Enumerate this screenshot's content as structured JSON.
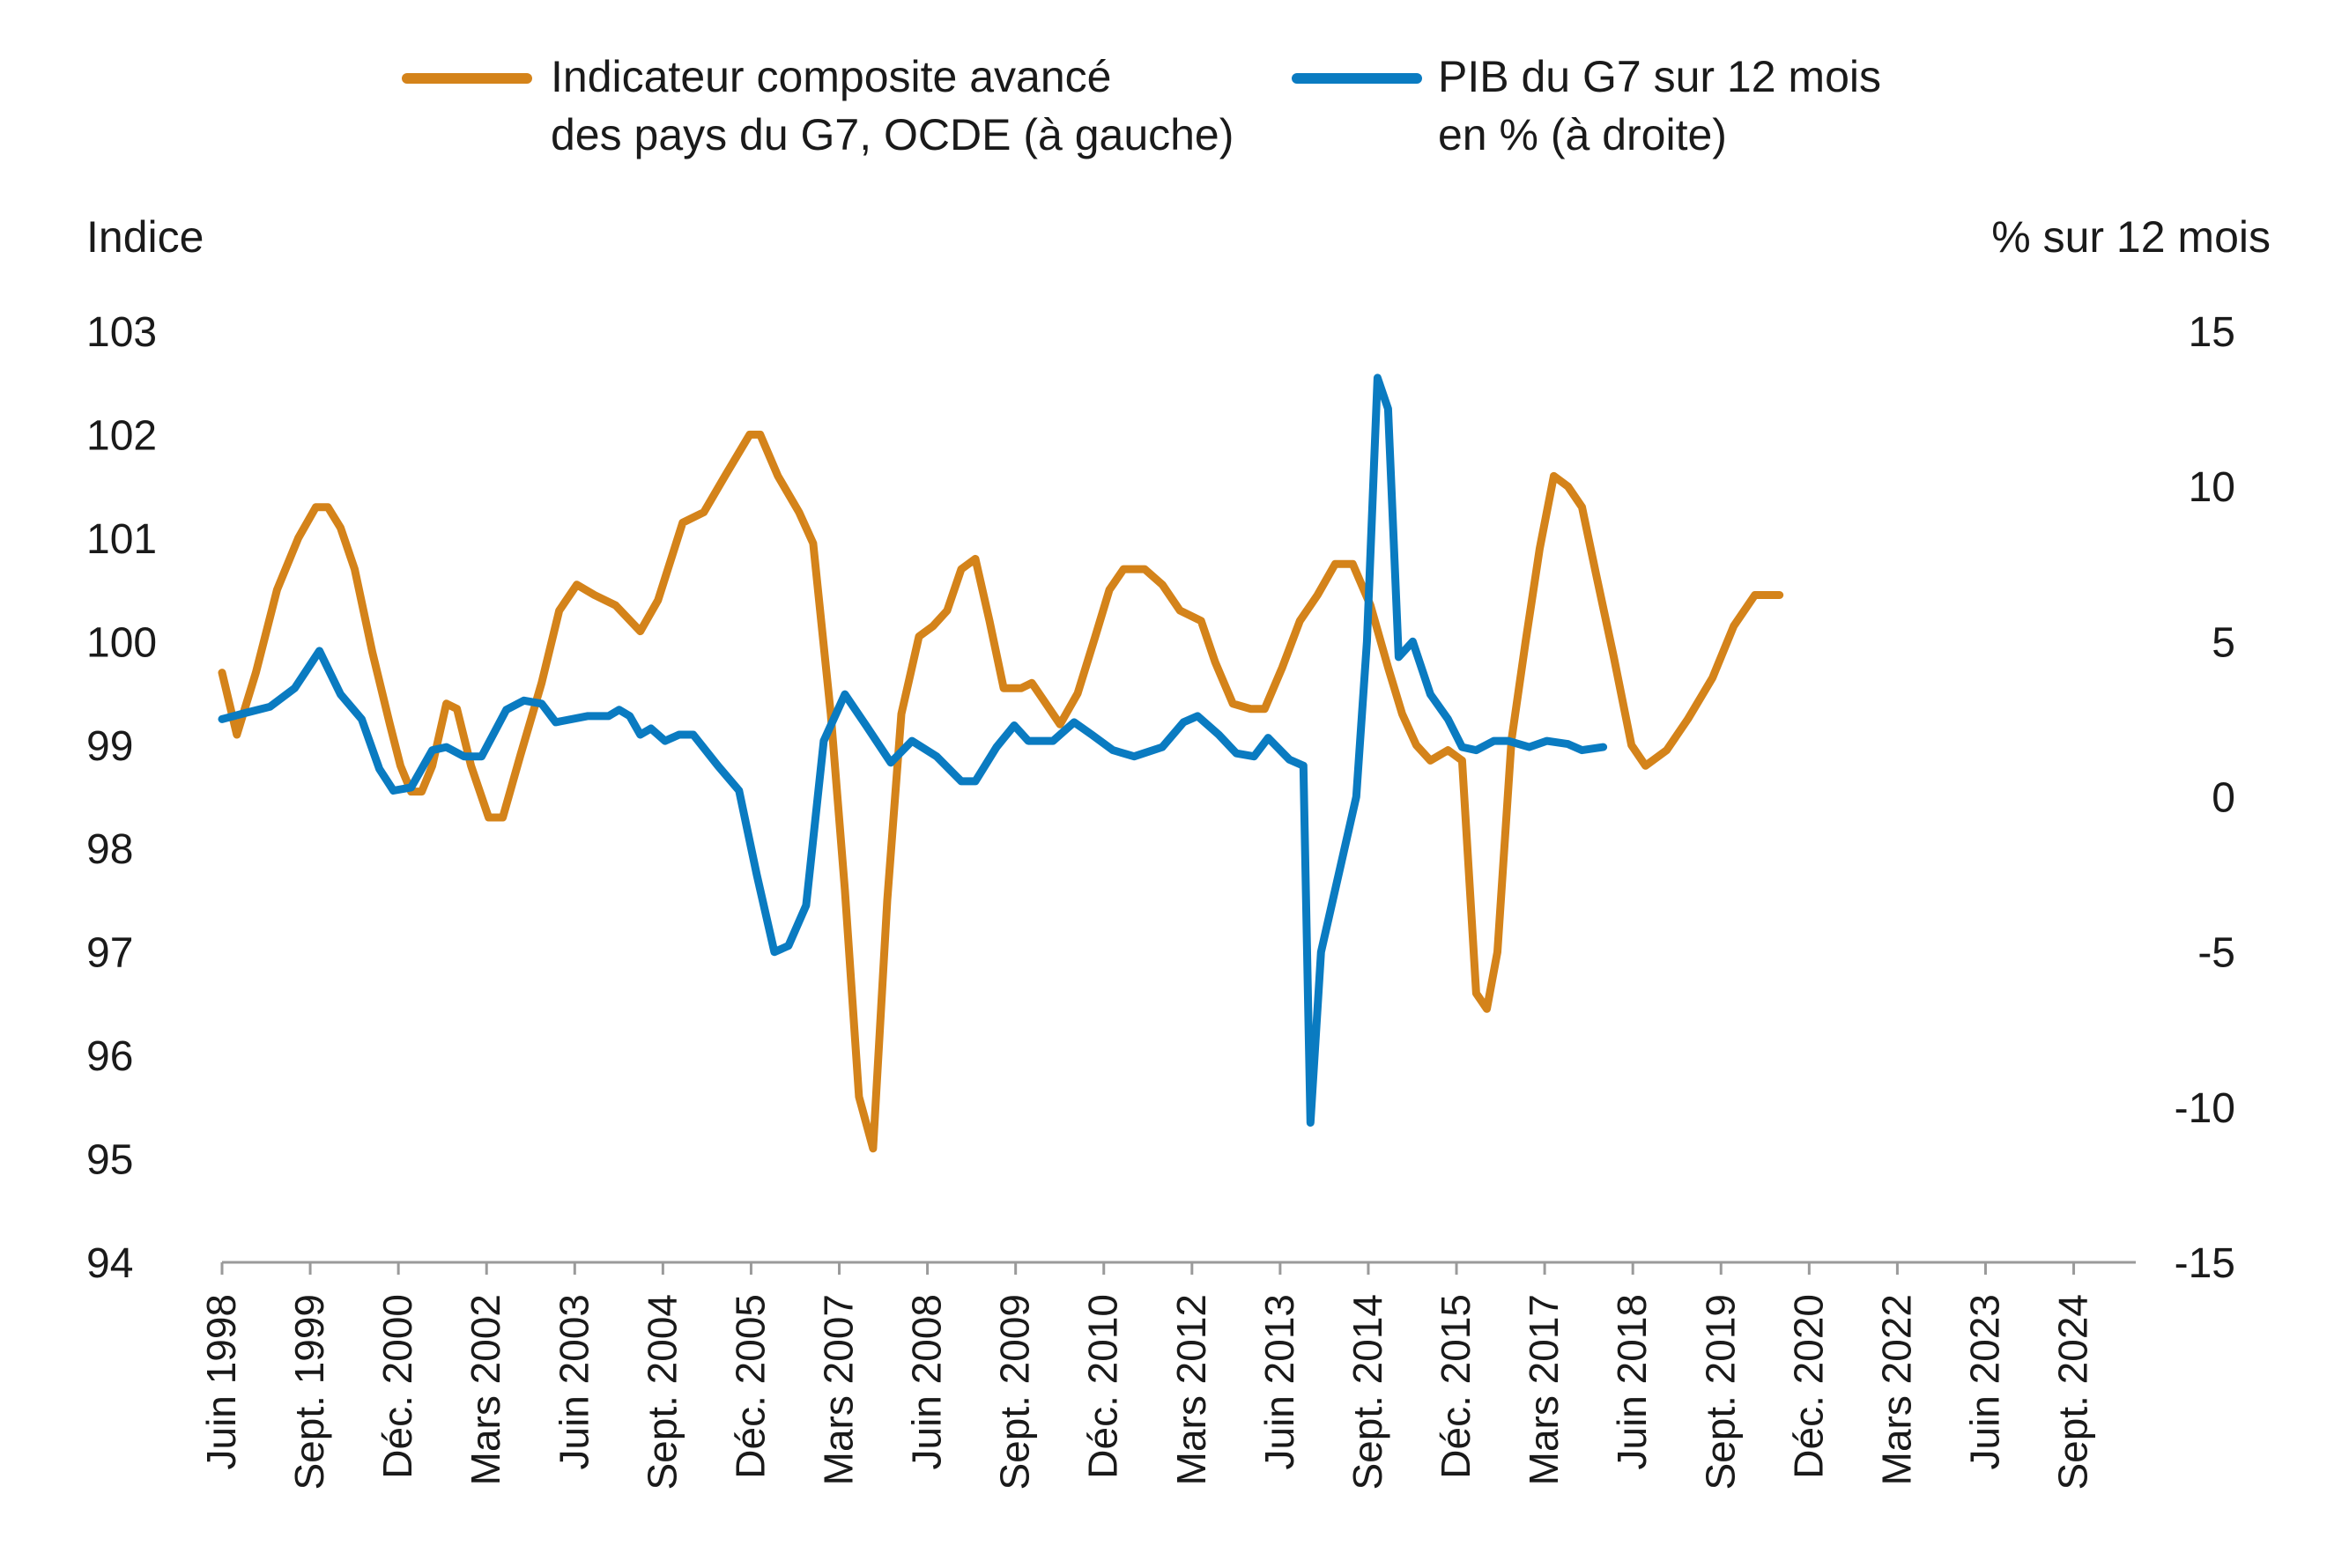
{
  "colors": {
    "composite": "#D4831A",
    "gdp": "#0A7BC1",
    "axis": "#9a9a9a",
    "text": "#1a1a1a"
  },
  "legend": {
    "composite": [
      "Indicateur composite avancé",
      "des pays du G7, OCDE (à gauche)"
    ],
    "gdp": [
      "PIB du G7 sur 12 mois",
      "en % (à droite)"
    ]
  },
  "chart_data": {
    "type": "line",
    "title": "",
    "left_axis": {
      "title": "Indice",
      "range": [
        94,
        103
      ],
      "ticks": [
        94,
        95,
        96,
        97,
        98,
        99,
        100,
        101,
        102,
        103
      ]
    },
    "right_axis": {
      "title": "% sur 12 mois",
      "range": [
        -15,
        15
      ],
      "ticks": [
        -15,
        -10,
        -5,
        0,
        5,
        10,
        15
      ]
    },
    "x_range": [
      1998.42,
      2025.55
    ],
    "x_labels": [
      {
        "label": "Juin 1998",
        "t": 1998.42
      },
      {
        "label": "Sept. 1999",
        "t": 1999.67
      },
      {
        "label": "Déc. 2000",
        "t": 2000.92
      },
      {
        "label": "Mars 2002",
        "t": 2002.17
      },
      {
        "label": "Juin 2003",
        "t": 2003.42
      },
      {
        "label": "Sept. 2004",
        "t": 2004.67
      },
      {
        "label": "Déc. 2005",
        "t": 2005.92
      },
      {
        "label": "Mars 2007",
        "t": 2007.17
      },
      {
        "label": "Juin 2008",
        "t": 2008.42
      },
      {
        "label": "Sept. 2009",
        "t": 2009.67
      },
      {
        "label": "Déc. 2010",
        "t": 2010.92
      },
      {
        "label": "Mars 2012",
        "t": 2012.17
      },
      {
        "label": "Juin 2013",
        "t": 2013.42
      },
      {
        "label": "Sept. 2014",
        "t": 2014.67
      },
      {
        "label": "Déc. 2015",
        "t": 2015.92
      },
      {
        "label": "Mars 2017",
        "t": 2017.17
      },
      {
        "label": "Juin 2018",
        "t": 2018.42
      },
      {
        "label": "Sept. 2019",
        "t": 2019.67
      },
      {
        "label": "Déc. 2020",
        "t": 2020.92
      },
      {
        "label": "Mars 2022",
        "t": 2022.17
      },
      {
        "label": "Juin 2023",
        "t": 2023.42
      },
      {
        "label": "Sept. 2024",
        "t": 2024.67
      }
    ],
    "series": [
      {
        "name": "Indicateur composite avancé des pays du G7, OCDE (à gauche)",
        "axis": "left",
        "color_key": "composite",
        "points": [
          [
            1998.42,
            99.7
          ],
          [
            1998.63,
            99.1
          ],
          [
            1998.9,
            99.7
          ],
          [
            1999.2,
            100.5
          ],
          [
            1999.5,
            101.0
          ],
          [
            1999.75,
            101.3
          ],
          [
            1999.92,
            101.3
          ],
          [
            2000.1,
            101.1
          ],
          [
            2000.3,
            100.7
          ],
          [
            2000.55,
            99.9
          ],
          [
            2000.8,
            99.2
          ],
          [
            2000.95,
            98.8
          ],
          [
            2001.1,
            98.55
          ],
          [
            2001.25,
            98.55
          ],
          [
            2001.4,
            98.8
          ],
          [
            2001.6,
            99.4
          ],
          [
            2001.75,
            99.35
          ],
          [
            2001.95,
            98.8
          ],
          [
            2002.2,
            98.3
          ],
          [
            2002.4,
            98.3
          ],
          [
            2002.65,
            98.9
          ],
          [
            2002.95,
            99.6
          ],
          [
            2003.2,
            100.3
          ],
          [
            2003.45,
            100.55
          ],
          [
            2003.7,
            100.45
          ],
          [
            2004.0,
            100.35
          ],
          [
            2004.35,
            100.1
          ],
          [
            2004.6,
            100.4
          ],
          [
            2004.95,
            101.15
          ],
          [
            2005.25,
            101.25
          ],
          [
            2005.55,
            101.6
          ],
          [
            2005.9,
            102.0
          ],
          [
            2006.05,
            102.0
          ],
          [
            2006.3,
            101.6
          ],
          [
            2006.6,
            101.25
          ],
          [
            2006.8,
            100.95
          ],
          [
            2007.05,
            99.3
          ],
          [
            2007.25,
            97.6
          ],
          [
            2007.45,
            95.6
          ],
          [
            2007.65,
            95.1
          ],
          [
            2007.85,
            97.5
          ],
          [
            2008.05,
            99.3
          ],
          [
            2008.3,
            100.05
          ],
          [
            2008.5,
            100.15
          ],
          [
            2008.7,
            100.3
          ],
          [
            2008.9,
            100.7
          ],
          [
            2009.1,
            100.8
          ],
          [
            2009.3,
            100.2
          ],
          [
            2009.5,
            99.55
          ],
          [
            2009.75,
            99.55
          ],
          [
            2009.9,
            99.6
          ],
          [
            2010.05,
            99.45
          ],
          [
            2010.3,
            99.2
          ],
          [
            2010.55,
            99.5
          ],
          [
            2010.8,
            100.05
          ],
          [
            2011.0,
            100.5
          ],
          [
            2011.2,
            100.7
          ],
          [
            2011.5,
            100.7
          ],
          [
            2011.75,
            100.55
          ],
          [
            2012.0,
            100.3
          ],
          [
            2012.3,
            100.2
          ],
          [
            2012.5,
            99.8
          ],
          [
            2012.75,
            99.4
          ],
          [
            2013.0,
            99.35
          ],
          [
            2013.2,
            99.35
          ],
          [
            2013.45,
            99.75
          ],
          [
            2013.7,
            100.2
          ],
          [
            2013.95,
            100.45
          ],
          [
            2014.2,
            100.75
          ],
          [
            2014.45,
            100.75
          ],
          [
            2014.7,
            100.35
          ],
          [
            2014.95,
            99.75
          ],
          [
            2015.15,
            99.3
          ],
          [
            2015.35,
            99.0
          ],
          [
            2015.55,
            98.85
          ],
          [
            2015.8,
            98.95
          ],
          [
            2016.0,
            98.85
          ],
          [
            2016.2,
            96.6
          ],
          [
            2016.35,
            96.45
          ],
          [
            2016.5,
            97.0
          ],
          [
            2016.7,
            99.05
          ],
          [
            2016.9,
            100.0
          ],
          [
            2017.1,
            100.9
          ],
          [
            2017.3,
            101.6
          ],
          [
            2017.5,
            101.5
          ],
          [
            2017.7,
            101.3
          ],
          [
            2017.9,
            100.65
          ],
          [
            2018.15,
            99.85
          ],
          [
            2018.4,
            99.0
          ],
          [
            2018.6,
            98.8
          ],
          [
            2018.9,
            98.95
          ],
          [
            2019.2,
            99.25
          ],
          [
            2019.55,
            99.65
          ],
          [
            2019.85,
            100.15
          ],
          [
            2020.15,
            100.45
          ],
          [
            2020.5,
            100.45
          ]
        ]
      },
      {
        "name": "PIB du G7 sur 12 mois en % (à droite)",
        "axis": "right",
        "color_key": "gdp",
        "points": [
          [
            1998.42,
            2.5
          ],
          [
            1998.75,
            2.7
          ],
          [
            1999.1,
            2.9
          ],
          [
            1999.45,
            3.5
          ],
          [
            1999.8,
            4.7
          ],
          [
            2000.1,
            3.3
          ],
          [
            2000.4,
            2.5
          ],
          [
            2000.65,
            0.9
          ],
          [
            2000.85,
            0.2
          ],
          [
            2001.1,
            0.3
          ],
          [
            2001.4,
            1.5
          ],
          [
            2001.6,
            1.6
          ],
          [
            2001.85,
            1.3
          ],
          [
            2002.1,
            1.3
          ],
          [
            2002.45,
            2.8
          ],
          [
            2002.7,
            3.1
          ],
          [
            2002.95,
            3.0
          ],
          [
            2003.15,
            2.4
          ],
          [
            2003.6,
            2.6
          ],
          [
            2003.9,
            2.6
          ],
          [
            2004.05,
            2.8
          ],
          [
            2004.2,
            2.6
          ],
          [
            2004.35,
            2.0
          ],
          [
            2004.5,
            2.2
          ],
          [
            2004.7,
            1.8
          ],
          [
            2004.9,
            2.0
          ],
          [
            2005.1,
            2.0
          ],
          [
            2005.45,
            1.0
          ],
          [
            2005.75,
            0.2
          ],
          [
            2006.0,
            -2.5
          ],
          [
            2006.25,
            -5.0
          ],
          [
            2006.45,
            -4.8
          ],
          [
            2006.7,
            -3.5
          ],
          [
            2006.95,
            1.8
          ],
          [
            2007.25,
            3.3
          ],
          [
            2007.55,
            2.3
          ],
          [
            2007.9,
            1.1
          ],
          [
            2008.2,
            1.8
          ],
          [
            2008.55,
            1.3
          ],
          [
            2008.9,
            0.5
          ],
          [
            2009.1,
            0.5
          ],
          [
            2009.4,
            1.6
          ],
          [
            2009.65,
            2.3
          ],
          [
            2009.85,
            1.8
          ],
          [
            2010.2,
            1.8
          ],
          [
            2010.5,
            2.4
          ],
          [
            2010.75,
            2.0
          ],
          [
            2011.05,
            1.5
          ],
          [
            2011.35,
            1.3
          ],
          [
            2011.75,
            1.6
          ],
          [
            2012.05,
            2.4
          ],
          [
            2012.25,
            2.6
          ],
          [
            2012.55,
            2.0
          ],
          [
            2012.8,
            1.4
          ],
          [
            2013.05,
            1.3
          ],
          [
            2013.25,
            1.9
          ],
          [
            2013.55,
            1.2
          ],
          [
            2013.75,
            1.0
          ],
          [
            2013.85,
            -10.5
          ],
          [
            2014.0,
            -5.0
          ],
          [
            2014.25,
            -2.5
          ],
          [
            2014.5,
            0.0
          ],
          [
            2014.65,
            5.0
          ],
          [
            2014.8,
            13.5
          ],
          [
            2014.95,
            12.5
          ],
          [
            2015.1,
            4.5
          ],
          [
            2015.3,
            5.0
          ],
          [
            2015.55,
            3.3
          ],
          [
            2015.8,
            2.5
          ],
          [
            2016.0,
            1.6
          ],
          [
            2016.2,
            1.5
          ],
          [
            2016.45,
            1.8
          ],
          [
            2016.65,
            1.8
          ],
          [
            2016.95,
            1.6
          ],
          [
            2017.2,
            1.8
          ],
          [
            2017.5,
            1.7
          ],
          [
            2017.7,
            1.5
          ],
          [
            2018.0,
            1.6
          ]
        ]
      }
    ]
  }
}
